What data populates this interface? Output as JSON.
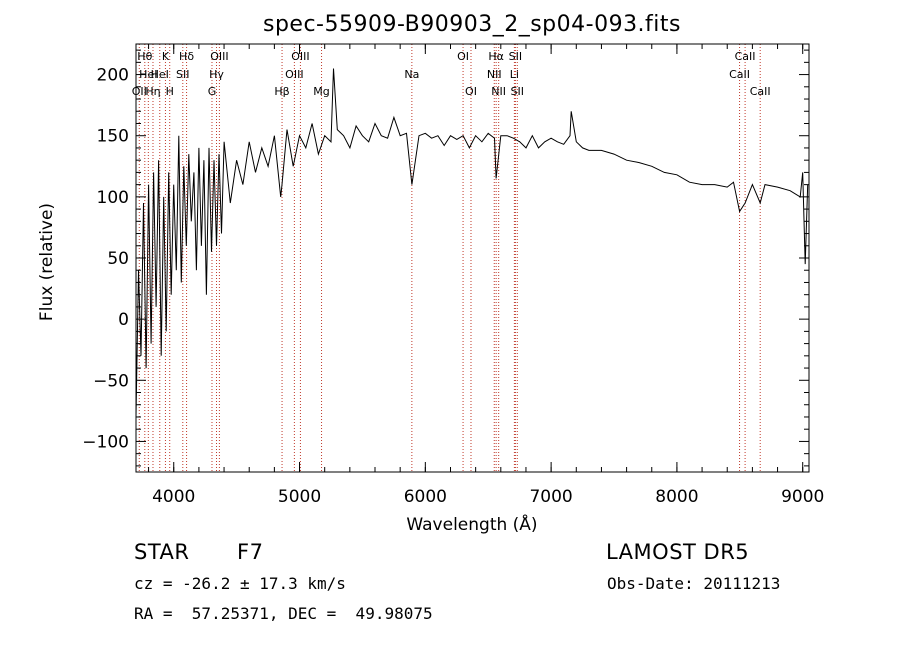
{
  "chart_data": {
    "type": "line",
    "title": "spec-55909-B90903_2_sp04-093.fits",
    "xlabel": "Wavelength (Å)",
    "ylabel": "Flux (relative)",
    "xlim": [
      3700,
      9050
    ],
    "ylim": [
      -125,
      225
    ],
    "xticks": [
      4000,
      5000,
      6000,
      7000,
      8000,
      9000
    ],
    "yticks": [
      -100,
      -50,
      0,
      50,
      100,
      150,
      200
    ],
    "grid": false,
    "series": [
      {
        "color": "#000000",
        "x": [
          3700,
          3720,
          3740,
          3760,
          3780,
          3800,
          3820,
          3840,
          3860,
          3880,
          3900,
          3920,
          3940,
          3960,
          3980,
          4000,
          4020,
          4040,
          4060,
          4080,
          4100,
          4120,
          4140,
          4160,
          4180,
          4200,
          4220,
          4240,
          4260,
          4280,
          4300,
          4320,
          4340,
          4360,
          4380,
          4400,
          4450,
          4500,
          4550,
          4600,
          4650,
          4700,
          4750,
          4800,
          4850,
          4861,
          4900,
          4950,
          5000,
          5050,
          5100,
          5150,
          5200,
          5250,
          5270,
          5300,
          5350,
          5400,
          5450,
          5500,
          5550,
          5600,
          5650,
          5700,
          5750,
          5800,
          5850,
          5893,
          5950,
          6000,
          6050,
          6100,
          6150,
          6200,
          6250,
          6300,
          6350,
          6400,
          6450,
          6500,
          6550,
          6563,
          6600,
          6650,
          6700,
          6750,
          6800,
          6850,
          6900,
          6950,
          7000,
          7050,
          7100,
          7150,
          7160,
          7200,
          7250,
          7300,
          7400,
          7500,
          7600,
          7700,
          7800,
          7900,
          8000,
          8100,
          8200,
          8300,
          8400,
          8450,
          8498,
          8542,
          8600,
          8662,
          8700,
          8800,
          8900,
          8980,
          9000,
          9020,
          9040
        ],
        "y": [
          -80,
          40,
          -30,
          95,
          -40,
          110,
          -20,
          120,
          10,
          130,
          -30,
          100,
          -10,
          120,
          20,
          110,
          40,
          150,
          30,
          125,
          60,
          135,
          80,
          120,
          40,
          140,
          60,
          130,
          20,
          140,
          55,
          130,
          60,
          135,
          70,
          145,
          95,
          130,
          110,
          145,
          120,
          140,
          125,
          150,
          100,
          110,
          155,
          125,
          150,
          140,
          160,
          135,
          150,
          145,
          205,
          155,
          150,
          140,
          158,
          150,
          145,
          160,
          150,
          148,
          165,
          150,
          152,
          110,
          150,
          152,
          148,
          150,
          142,
          150,
          147,
          150,
          140,
          150,
          145,
          152,
          148,
          115,
          150,
          150,
          148,
          145,
          140,
          150,
          140,
          145,
          148,
          145,
          143,
          150,
          170,
          145,
          140,
          138,
          138,
          135,
          130,
          128,
          125,
          120,
          118,
          112,
          110,
          110,
          108,
          112,
          88,
          95,
          110,
          95,
          110,
          108,
          105,
          100,
          120,
          45,
          110
        ]
      }
    ],
    "lines": [
      {
        "x": 3726,
        "label": "OII",
        "row": 3
      },
      {
        "x": 3770,
        "label": "Hθ",
        "row": 1
      },
      {
        "x": 3798,
        "label": "HeI",
        "row": 2
      },
      {
        "x": 3835,
        "label": "Hη",
        "row": 3
      },
      {
        "x": 3889,
        "label": "HeI",
        "row": 2
      },
      {
        "x": 3934,
        "label": "K",
        "row": 1
      },
      {
        "x": 3968,
        "label": "H",
        "row": 3
      },
      {
        "x": 4072,
        "label": "SII",
        "row": 2
      },
      {
        "x": 4102,
        "label": "Hδ",
        "row": 1
      },
      {
        "x": 4304,
        "label": "G",
        "row": 3
      },
      {
        "x": 4340,
        "label": "Hγ",
        "row": 2
      },
      {
        "x": 4363,
        "label": "OIII",
        "row": 1
      },
      {
        "x": 4861,
        "label": "Hβ",
        "row": 3
      },
      {
        "x": 4959,
        "label": "OIII",
        "row": 2
      },
      {
        "x": 5007,
        "label": "OIII",
        "row": 1
      },
      {
        "x": 5175,
        "label": "Mg",
        "row": 3
      },
      {
        "x": 5893,
        "label": "Na",
        "row": 2
      },
      {
        "x": 6300,
        "label": "OI",
        "row": 1
      },
      {
        "x": 6363,
        "label": "OI",
        "row": 3
      },
      {
        "x": 6548,
        "label": "NII",
        "row": 2
      },
      {
        "x": 6563,
        "label": "Hα",
        "row": 1
      },
      {
        "x": 6583,
        "label": "NII",
        "row": 3
      },
      {
        "x": 6708,
        "label": "Li",
        "row": 2
      },
      {
        "x": 6716,
        "label": "SII",
        "row": 1
      },
      {
        "x": 6731,
        "label": "SII",
        "row": 3
      },
      {
        "x": 8498,
        "label": "CaII",
        "row": 2
      },
      {
        "x": 8542,
        "label": "CaII",
        "row": 1
      },
      {
        "x": 8662,
        "label": "CaII",
        "row": 3
      }
    ]
  },
  "footer": {
    "class_label": "STAR",
    "subclass": "F7",
    "survey": "LAMOST DR5",
    "cz": "cz = -26.2 ± 17.3 km/s",
    "obs_date": "Obs-Date: 20111213",
    "coords": "RA =  57.25371, DEC =  49.98075"
  }
}
